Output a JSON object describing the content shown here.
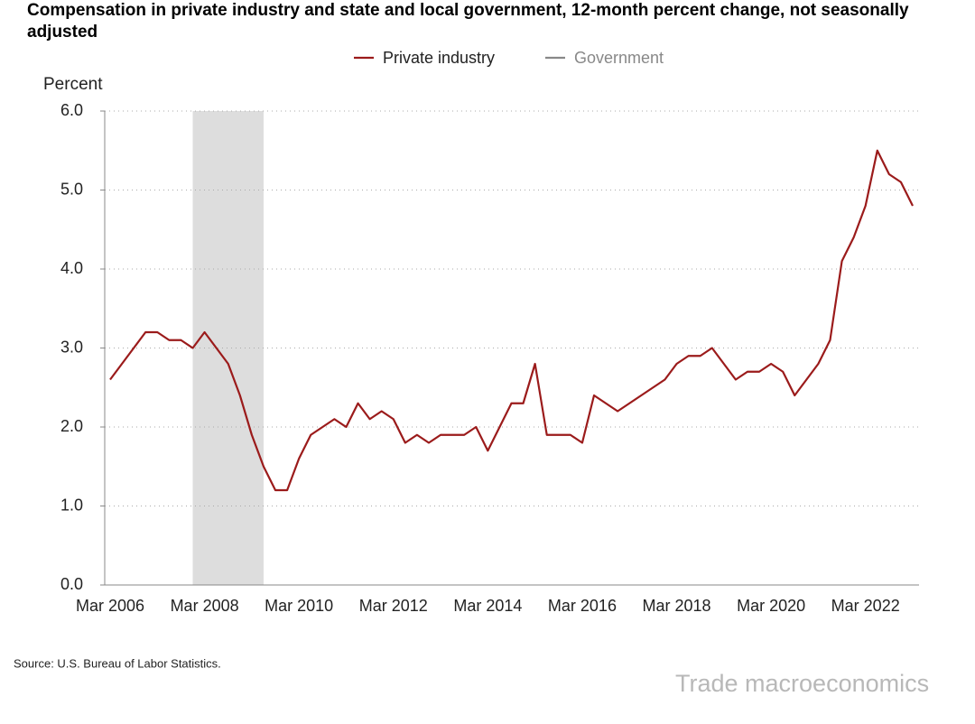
{
  "chart_data": {
    "type": "line",
    "title": "Compensation in private industry and state and local government, 12-month percent change, not seasonally adjusted",
    "y_label": "Percent",
    "source": "Source: U.S. Bureau of Labor Statistics.",
    "watermark": "Trade macroeconomics",
    "categories": [
      "Mar 2006",
      null,
      null,
      null,
      null,
      null,
      null,
      null,
      "Mar 2008",
      null,
      null,
      null,
      null,
      null,
      null,
      null,
      "Mar 2010",
      null,
      null,
      null,
      null,
      null,
      null,
      null,
      "Mar 2012",
      null,
      null,
      null,
      null,
      null,
      null,
      null,
      "Mar 2014",
      null,
      null,
      null,
      null,
      null,
      null,
      null,
      "Mar 2016",
      null,
      null,
      null,
      null,
      null,
      null,
      null,
      "Mar 2018",
      null,
      null,
      null,
      null,
      null,
      null,
      null,
      "Mar 2020",
      null,
      null,
      null,
      null,
      null,
      null,
      null,
      "Mar 2022",
      null,
      null,
      null,
      null
    ],
    "series": [
      {
        "name": "Private industry",
        "color": "#9b1b1b",
        "visible": true,
        "values": [
          2.6,
          2.8,
          3.0,
          3.2,
          3.2,
          3.1,
          3.1,
          3.0,
          3.2,
          3.0,
          2.8,
          2.4,
          1.9,
          1.5,
          1.2,
          1.2,
          1.6,
          1.9,
          2.0,
          2.1,
          2.0,
          2.3,
          2.1,
          2.2,
          2.1,
          1.8,
          1.9,
          1.8,
          1.9,
          1.9,
          1.9,
          2.0,
          1.7,
          2.0,
          2.3,
          2.3,
          2.8,
          1.9,
          1.9,
          1.9,
          1.8,
          2.4,
          2.3,
          2.2,
          2.3,
          2.4,
          2.5,
          2.6,
          2.8,
          2.9,
          2.9,
          3.0,
          2.8,
          2.6,
          2.7,
          2.7,
          2.8,
          2.7,
          2.4,
          2.6,
          2.8,
          3.1,
          4.1,
          4.4,
          4.8,
          5.5,
          5.2,
          5.1,
          4.8
        ]
      },
      {
        "name": "Government",
        "color": "#888888",
        "visible": false,
        "values": [
          null,
          null,
          null,
          null,
          null,
          null,
          null,
          null,
          null,
          null,
          null,
          null,
          null,
          null,
          null,
          null,
          null,
          null,
          null,
          null,
          null,
          null,
          null,
          null,
          null,
          null,
          null,
          null,
          null,
          null,
          null,
          null,
          null,
          null,
          null,
          null,
          null,
          null,
          null,
          null,
          null,
          null,
          null,
          null,
          null,
          null,
          null,
          null,
          null,
          null,
          null,
          null,
          null,
          null,
          null,
          null,
          null,
          null,
          null,
          null,
          null,
          null,
          null,
          null,
          null,
          null,
          null,
          null,
          null
        ]
      }
    ],
    "recession": [
      7,
      13
    ],
    "recession_color": "#dddddd",
    "ylim": [
      0,
      6
    ],
    "yticks": [
      {
        "value": 0,
        "label": "0.0"
      },
      {
        "value": 1,
        "label": "1.0"
      },
      {
        "value": 2,
        "label": "2.0"
      },
      {
        "value": 3,
        "label": "3.0"
      },
      {
        "value": 4,
        "label": "4.0"
      },
      {
        "value": 5,
        "label": "5.0"
      },
      {
        "value": 6,
        "label": "6.0"
      }
    ],
    "grid": true
  }
}
